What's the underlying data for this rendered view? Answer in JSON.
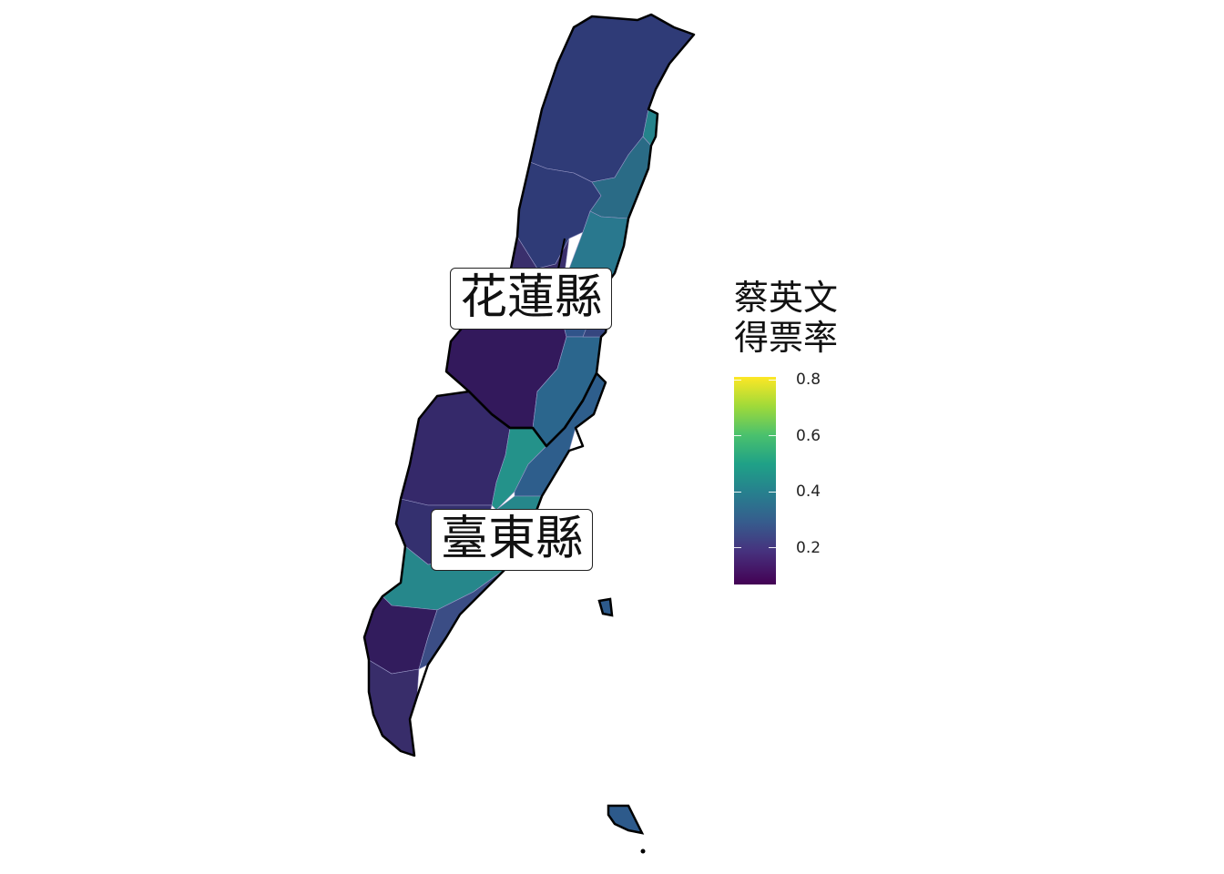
{
  "map": {
    "counties": [
      {
        "id": "hualien",
        "label": "花蓮縣"
      },
      {
        "id": "taitung",
        "label": "臺東縣"
      }
    ],
    "townships": [
      {
        "county": "hualien",
        "share": 0.22,
        "color": "#2f3b77"
      },
      {
        "county": "hualien",
        "share": 0.22,
        "color": "#2f3b77"
      },
      {
        "county": "hualien",
        "share": 0.37,
        "color": "#2a6b86"
      },
      {
        "county": "hualien",
        "share": 0.41,
        "color": "#25838b"
      },
      {
        "county": "hualien",
        "share": 0.18,
        "color": "#3a2f6c"
      },
      {
        "county": "hualien",
        "share": 0.39,
        "color": "#29788e"
      },
      {
        "county": "hualien",
        "share": 0.12,
        "color": "#33195c"
      },
      {
        "county": "hualien",
        "share": 0.3,
        "color": "#30548a"
      },
      {
        "county": "hualien",
        "share": 0.36,
        "color": "#2b668d"
      },
      {
        "county": "hualien",
        "share": 0.27,
        "color": "#35467f"
      },
      {
        "county": "taitung",
        "share": 0.19,
        "color": "#35296a"
      },
      {
        "county": "taitung",
        "share": 0.45,
        "color": "#24928a"
      },
      {
        "county": "taitung",
        "share": 0.32,
        "color": "#2e5e8c"
      },
      {
        "county": "taitung",
        "share": 0.2,
        "color": "#34306f"
      },
      {
        "county": "taitung",
        "share": 0.43,
        "color": "#26878b"
      },
      {
        "county": "taitung",
        "share": 0.13,
        "color": "#321c5d"
      },
      {
        "county": "taitung",
        "share": 0.17,
        "color": "#382d6a"
      },
      {
        "county": "taitung",
        "share": 0.28,
        "color": "#3b4d85"
      },
      {
        "county": "taitung",
        "share": 0.3,
        "color": "#2d5a8b"
      },
      {
        "county": "taitung",
        "share": 0.3,
        "color": "#2d5a8b"
      }
    ]
  },
  "legend": {
    "title_line1": "蔡英文",
    "title_line2": "得票率",
    "ticks": [
      {
        "value": 0.8,
        "label": "0.8"
      },
      {
        "value": 0.6,
        "label": "0.6"
      },
      {
        "value": 0.4,
        "label": "0.4"
      },
      {
        "value": 0.2,
        "label": "0.2"
      }
    ],
    "range": [
      0.07,
      0.81
    ],
    "palette": [
      "#440154",
      "#46327e",
      "#365c8d",
      "#277f8e",
      "#1fa187",
      "#4ac16d",
      "#a0da39",
      "#fde725"
    ]
  },
  "colors": {
    "border": "#000000",
    "internal_border": "#9a9ac8"
  }
}
